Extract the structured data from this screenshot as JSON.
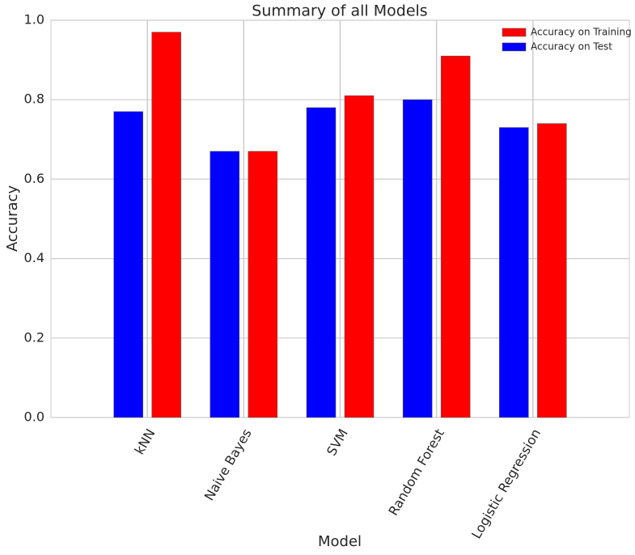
{
  "chart_data": {
    "type": "bar",
    "title": "Summary of all Models",
    "x_label": "Model",
    "y_label": "Accuracy",
    "categories": [
      "kNN",
      "Naive Bayes",
      "SVM",
      "Random Forest",
      "Logistic Regression"
    ],
    "series": [
      {
        "name": "Accuracy on Training",
        "color": "#ff0000",
        "values": [
          0.97,
          0.67,
          0.81,
          0.91,
          0.74
        ]
      },
      {
        "name": "Accuracy on Test",
        "color": "#0000ff",
        "values": [
          0.77,
          0.67,
          0.78,
          0.8,
          0.73
        ]
      }
    ],
    "ylim": [
      0,
      1
    ],
    "yticks": [
      {
        "value": 0,
        "label": "0.0"
      },
      0.2,
      0.4,
      0.6,
      0.8,
      {
        "value": 1,
        "label": "1.0"
      }
    ],
    "grid": true,
    "legend": "upper right"
  }
}
